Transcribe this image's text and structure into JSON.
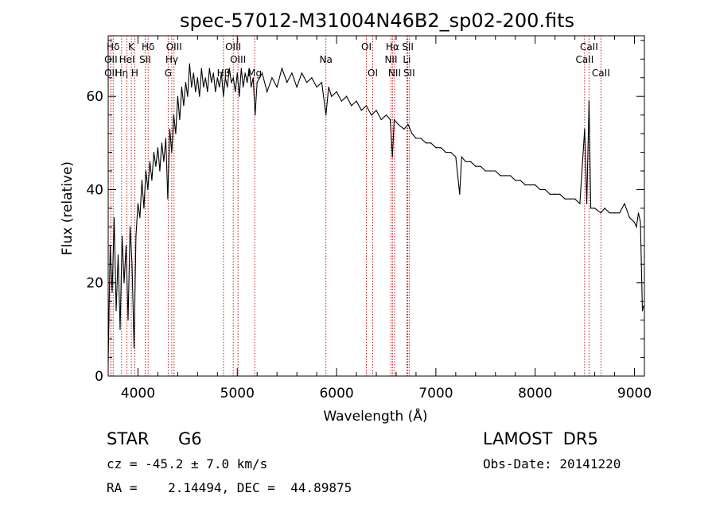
{
  "chart_data": {
    "type": "line",
    "title": "spec-57012-M31004N46B2_sp02-200.fits",
    "xlabel": "Wavelength (Å)",
    "ylabel": "Flux (relative)",
    "xlim": [
      3700,
      9100
    ],
    "ylim": [
      0,
      73
    ],
    "xticks": [
      4000,
      5000,
      6000,
      7000,
      8000,
      9000
    ],
    "yticks": [
      0,
      20,
      40,
      60
    ],
    "grid": false,
    "colors": {
      "spectrum": "#000000",
      "line_markers": "#c00000"
    },
    "series": [
      {
        "values": [
          [
            3700,
            3
          ],
          [
            3720,
            28
          ],
          [
            3740,
            18
          ],
          [
            3760,
            34
          ],
          [
            3780,
            14
          ],
          [
            3800,
            26
          ],
          [
            3820,
            10
          ],
          [
            3840,
            30
          ],
          [
            3860,
            20
          ],
          [
            3880,
            28
          ],
          [
            3900,
            12
          ],
          [
            3920,
            32
          ],
          [
            3940,
            24
          ],
          [
            3960,
            6
          ],
          [
            3980,
            30
          ],
          [
            4000,
            37
          ],
          [
            4020,
            34
          ],
          [
            4040,
            42
          ],
          [
            4060,
            36
          ],
          [
            4080,
            44
          ],
          [
            4100,
            40
          ],
          [
            4120,
            46
          ],
          [
            4140,
            42
          ],
          [
            4160,
            48
          ],
          [
            4180,
            45
          ],
          [
            4200,
            49
          ],
          [
            4220,
            44
          ],
          [
            4240,
            50
          ],
          [
            4260,
            46
          ],
          [
            4280,
            51
          ],
          [
            4300,
            38
          ],
          [
            4320,
            53
          ],
          [
            4340,
            48
          ],
          [
            4360,
            56
          ],
          [
            4380,
            52
          ],
          [
            4400,
            60
          ],
          [
            4420,
            55
          ],
          [
            4440,
            62
          ],
          [
            4460,
            58
          ],
          [
            4480,
            63
          ],
          [
            4500,
            60
          ],
          [
            4520,
            67
          ],
          [
            4540,
            62
          ],
          [
            4560,
            65
          ],
          [
            4580,
            61
          ],
          [
            4600,
            64
          ],
          [
            4620,
            60
          ],
          [
            4640,
            66
          ],
          [
            4660,
            62
          ],
          [
            4680,
            64
          ],
          [
            4700,
            61
          ],
          [
            4720,
            66
          ],
          [
            4740,
            63
          ],
          [
            4760,
            65
          ],
          [
            4780,
            61
          ],
          [
            4800,
            64
          ],
          [
            4820,
            62
          ],
          [
            4840,
            65
          ],
          [
            4860,
            60
          ],
          [
            4880,
            64
          ],
          [
            4900,
            62
          ],
          [
            4920,
            66
          ],
          [
            4940,
            63
          ],
          [
            4960,
            64
          ],
          [
            4980,
            61
          ],
          [
            5000,
            65
          ],
          [
            5020,
            60
          ],
          [
            5040,
            66
          ],
          [
            5060,
            62
          ],
          [
            5080,
            65
          ],
          [
            5100,
            63
          ],
          [
            5120,
            66
          ],
          [
            5140,
            62
          ],
          [
            5160,
            64
          ],
          [
            5180,
            56
          ],
          [
            5200,
            63
          ],
          [
            5250,
            65
          ],
          [
            5300,
            61
          ],
          [
            5350,
            64
          ],
          [
            5400,
            62
          ],
          [
            5450,
            66
          ],
          [
            5500,
            63
          ],
          [
            5550,
            65
          ],
          [
            5600,
            62
          ],
          [
            5650,
            65
          ],
          [
            5700,
            63
          ],
          [
            5750,
            64
          ],
          [
            5800,
            62
          ],
          [
            5850,
            63
          ],
          [
            5893,
            56
          ],
          [
            5920,
            62
          ],
          [
            5950,
            60
          ],
          [
            6000,
            61
          ],
          [
            6050,
            59
          ],
          [
            6100,
            60
          ],
          [
            6150,
            58
          ],
          [
            6200,
            59
          ],
          [
            6250,
            57
          ],
          [
            6300,
            58
          ],
          [
            6350,
            56
          ],
          [
            6400,
            57
          ],
          [
            6450,
            55
          ],
          [
            6500,
            56
          ],
          [
            6540,
            55
          ],
          [
            6563,
            47
          ],
          [
            6580,
            55
          ],
          [
            6620,
            54
          ],
          [
            6680,
            53
          ],
          [
            6720,
            54
          ],
          [
            6760,
            52
          ],
          [
            6800,
            51
          ],
          [
            6850,
            51
          ],
          [
            6900,
            50
          ],
          [
            6950,
            50
          ],
          [
            7000,
            49
          ],
          [
            7050,
            49
          ],
          [
            7100,
            48
          ],
          [
            7150,
            48
          ],
          [
            7200,
            47
          ],
          [
            7240,
            39
          ],
          [
            7260,
            47
          ],
          [
            7300,
            46
          ],
          [
            7350,
            46
          ],
          [
            7400,
            45
          ],
          [
            7450,
            45
          ],
          [
            7500,
            44
          ],
          [
            7550,
            44
          ],
          [
            7600,
            44
          ],
          [
            7650,
            43
          ],
          [
            7700,
            43
          ],
          [
            7750,
            43
          ],
          [
            7800,
            42
          ],
          [
            7850,
            42
          ],
          [
            7900,
            41
          ],
          [
            7950,
            41
          ],
          [
            8000,
            41
          ],
          [
            8050,
            40
          ],
          [
            8100,
            40
          ],
          [
            8150,
            39
          ],
          [
            8200,
            39
          ],
          [
            8250,
            39
          ],
          [
            8300,
            38
          ],
          [
            8350,
            38
          ],
          [
            8400,
            38
          ],
          [
            8450,
            37
          ],
          [
            8498,
            53
          ],
          [
            8520,
            37
          ],
          [
            8542,
            59
          ],
          [
            8560,
            36
          ],
          [
            8600,
            36
          ],
          [
            8662,
            35
          ],
          [
            8700,
            36
          ],
          [
            8750,
            35
          ],
          [
            8800,
            35
          ],
          [
            8850,
            35
          ],
          [
            8900,
            37
          ],
          [
            8950,
            34
          ],
          [
            9000,
            33
          ],
          [
            9020,
            32
          ],
          [
            9040,
            35
          ],
          [
            9060,
            33
          ],
          [
            9080,
            14
          ],
          [
            9090,
            15
          ]
        ]
      }
    ],
    "line_markers": [
      {
        "label": "Hδ",
        "wavelength": 3750,
        "row": 1
      },
      {
        "label": "OII",
        "wavelength": 3727,
        "row": 2
      },
      {
        "label": "OII",
        "wavelength": 3727,
        "row": 3
      },
      {
        "label": "Hη",
        "wavelength": 3835,
        "row": 3
      },
      {
        "label": "HeI",
        "wavelength": 3889,
        "row": 2
      },
      {
        "label": "K",
        "wavelength": 3933,
        "row": 1
      },
      {
        "label": "H",
        "wavelength": 3968,
        "row": 3
      },
      {
        "label": "SII",
        "wavelength": 4072,
        "row": 2
      },
      {
        "label": "Hδ",
        "wavelength": 4102,
        "row": 1
      },
      {
        "label": "OIII",
        "wavelength": 4363,
        "row": 1
      },
      {
        "label": "Hγ",
        "wavelength": 4340,
        "row": 2
      },
      {
        "label": "G",
        "wavelength": 4304,
        "row": 3
      },
      {
        "label": "Hβ",
        "wavelength": 4861,
        "row": 3
      },
      {
        "label": "OIII",
        "wavelength": 4959,
        "row": 1
      },
      {
        "label": "OIII",
        "wavelength": 5007,
        "row": 2
      },
      {
        "label": "Mg",
        "wavelength": 5175,
        "row": 3
      },
      {
        "label": "Na",
        "wavelength": 5893,
        "row": 2
      },
      {
        "label": "OI",
        "wavelength": 6300,
        "row": 1
      },
      {
        "label": "OI",
        "wavelength": 6364,
        "row": 3
      },
      {
        "label": "Hα",
        "wavelength": 6563,
        "row": 1
      },
      {
        "label": "NII",
        "wavelength": 6548,
        "row": 2
      },
      {
        "label": "NII",
        "wavelength": 6584,
        "row": 3
      },
      {
        "label": "SII",
        "wavelength": 6717,
        "row": 1
      },
      {
        "label": "Li",
        "wavelength": 6708,
        "row": 2
      },
      {
        "label": "SII",
        "wavelength": 6731,
        "row": 3
      },
      {
        "label": "CaII",
        "wavelength": 8542,
        "row": 1
      },
      {
        "label": "CaII",
        "wavelength": 8498,
        "row": 2
      },
      {
        "label": "CaII",
        "wavelength": 8662,
        "row": 3
      }
    ]
  },
  "info": {
    "object_class": "STAR",
    "subclass": "G6",
    "cz": "cz = -45.2 ± 7.0 km/s",
    "coords": "RA =    2.14494, DEC =  44.89875",
    "survey": "LAMOST  DR5",
    "obs_date": "Obs-Date: 20141220"
  }
}
